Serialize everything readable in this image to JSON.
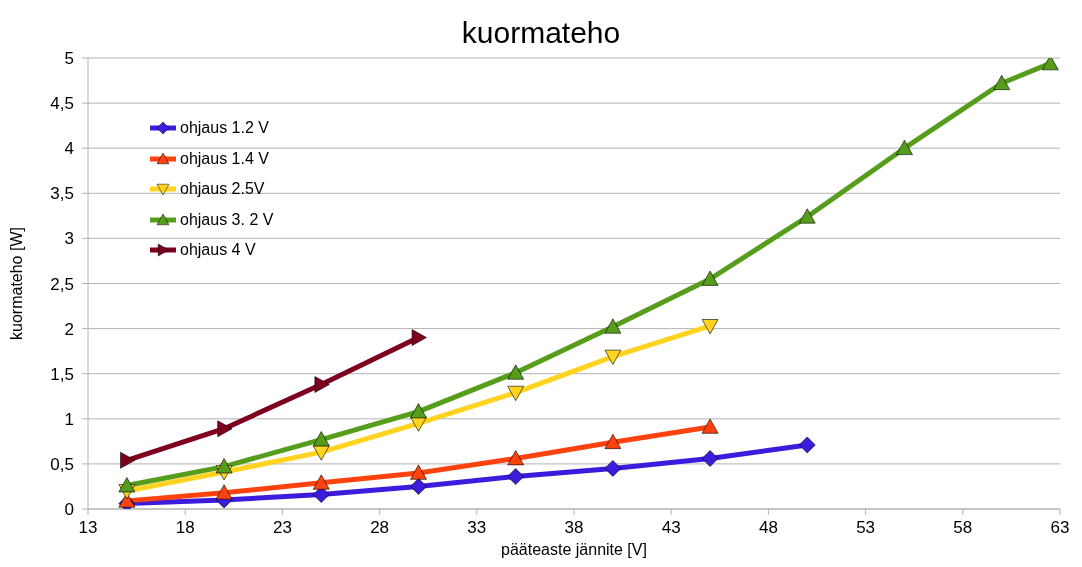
{
  "chart_data": {
    "type": "line",
    "title": "kuormateho",
    "xlabel": "pääteaste jännite [V]",
    "ylabel": "kuormateho [W]",
    "xlim": [
      13,
      63
    ],
    "xticks": [
      13,
      18,
      23,
      28,
      33,
      38,
      43,
      48,
      53,
      58,
      63
    ],
    "ylim": [
      0,
      5
    ],
    "yticks": [
      0,
      {
        "value": 0.5,
        "label": "0,5"
      },
      1,
      {
        "value": 1.5,
        "label": "1,5"
      },
      2,
      {
        "value": 2.5,
        "label": "2,5"
      },
      3,
      {
        "value": 3.5,
        "label": "3,5"
      },
      4,
      {
        "value": 4.5,
        "label": "4,5"
      },
      5
    ],
    "grid": "y",
    "legend": "top left",
    "line_style": "solid",
    "series": [
      {
        "name": "ohjaus 1.2 V",
        "color": "#3c1bdc",
        "marker": "diamond",
        "x": [
          15,
          20,
          25,
          30,
          35,
          40,
          45,
          50
        ],
        "values": [
          0.06,
          0.1,
          0.16,
          0.25,
          0.36,
          0.45,
          0.56,
          0.71
        ]
      },
      {
        "name": "ohjaus 1.4 V",
        "color": "#ff420e",
        "marker": "triangle",
        "x": [
          15,
          20,
          25,
          30,
          35,
          40,
          45
        ],
        "values": [
          0.09,
          0.18,
          0.29,
          0.4,
          0.56,
          0.74,
          0.91
        ]
      },
      {
        "name": "ohjaus 2.5V",
        "color": "#ffd320",
        "marker": "triangle-down",
        "x": [
          15,
          20,
          25,
          30,
          35,
          40,
          45
        ],
        "values": [
          0.2,
          0.41,
          0.63,
          0.95,
          1.29,
          1.69,
          2.03
        ]
      },
      {
        "name": "ohjaus 3. 2 V",
        "color": "#579d1c",
        "marker": "triangle",
        "x": [
          15,
          20,
          25,
          30,
          35,
          40,
          45,
          50,
          55,
          60,
          62.5
        ],
        "values": [
          0.26,
          0.47,
          0.77,
          1.08,
          1.51,
          2.02,
          2.55,
          3.24,
          4.0,
          4.72,
          4.94
        ]
      },
      {
        "name": "ohjaus 4 V",
        "color": "#7e0021",
        "marker": "triangle-right",
        "x": [
          15,
          20,
          25,
          30
        ],
        "values": [
          0.54,
          0.89,
          1.38,
          1.9
        ]
      }
    ]
  }
}
